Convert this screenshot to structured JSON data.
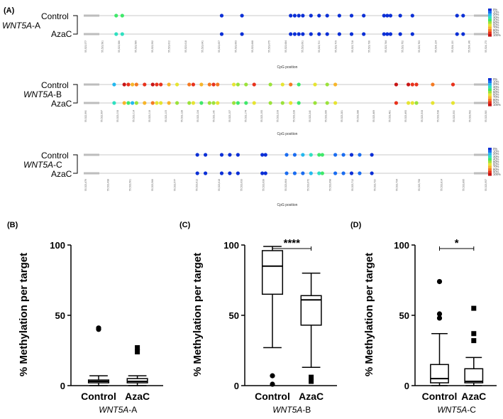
{
  "panels": {
    "A": "(A)",
    "B": "(B)",
    "C": "(C)",
    "D": "(D)"
  },
  "top_label_text": {
    "control": "Control",
    "azac": "AzaC",
    "xlabel": "CpG position"
  },
  "legend_levels": [
    "0%",
    "10%",
    "20%",
    "30%",
    "40%",
    "50%",
    "60%",
    "70%",
    "80%",
    "90%",
    "100%"
  ],
  "colors": {
    "scale": [
      "#0b2fd6",
      "#1a6cf0",
      "#23b8ee",
      "#2fe0c0",
      "#3fe86a",
      "#9be23a",
      "#e6e432",
      "#f7b52a",
      "#f47a22",
      "#e8321c",
      "#c81414"
    ],
    "line": "#c9c9c9",
    "box": "#000000"
  },
  "chart_data": [
    {
      "type": "dot-strip",
      "panel": "A",
      "gene": "WNT5A",
      "gene_suffix": "-A",
      "xlabel": "CpG position",
      "series_labels": [
        "Control",
        "AzaC"
      ],
      "color_scale": "methylation 0% (blue) to 100% (red)",
      "sites": [
        {
          "pos": 8.0,
          "control": 40,
          "azac": 30
        },
        {
          "pos": 9.5,
          "control": 40,
          "azac": 25
        },
        {
          "pos": 34.0,
          "control": 2,
          "azac": 3
        },
        {
          "pos": 39.0,
          "control": 3,
          "azac": 3
        },
        {
          "pos": 51.0,
          "control": 2,
          "azac": 2
        },
        {
          "pos": 52.0,
          "control": 2,
          "azac": 2
        },
        {
          "pos": 53.0,
          "control": 3,
          "azac": 3
        },
        {
          "pos": 54.0,
          "control": 2,
          "azac": 2
        },
        {
          "pos": 56.0,
          "control": 3,
          "azac": 2
        },
        {
          "pos": 58.0,
          "control": 2,
          "azac": 2
        },
        {
          "pos": 60.0,
          "control": 2,
          "azac": 3
        },
        {
          "pos": 63.0,
          "control": 3,
          "azac": 2
        },
        {
          "pos": 66.0,
          "control": 2,
          "azac": 2
        },
        {
          "pos": 69.0,
          "control": 3,
          "azac": 3
        },
        {
          "pos": 74.0,
          "control": 3,
          "azac": 3
        },
        {
          "pos": 74.8,
          "control": 2,
          "azac": 2
        },
        {
          "pos": 75.6,
          "control": 2,
          "azac": 2
        },
        {
          "pos": 78.0,
          "control": 3,
          "azac": 3
        },
        {
          "pos": 81.0,
          "control": 2,
          "azac": 2
        },
        {
          "pos": 92.0,
          "control": 2,
          "azac": 3
        },
        {
          "pos": 93.5,
          "control": 3,
          "azac": 2
        }
      ],
      "tick_labels": [
        "55,523,577",
        "55,523,581",
        "55,523,586",
        "55,523,589",
        "55,523,592",
        "55,523,602",
        "55,523,618",
        "55,523,641",
        "55,523,657",
        "55,523,663",
        "55,523,668",
        "55,523,675",
        "55,523,684",
        "55,523,691",
        "55,523,700",
        "55,523,709",
        "55,523,718",
        "55,523,736",
        "55,523,744",
        "55,523,752",
        "55,523,763",
        "55,524,124",
        "55,524,130",
        "55,524,146",
        "55,524,173"
      ]
    },
    {
      "type": "dot-strip",
      "panel": "A2",
      "gene": "WNT5A",
      "gene_suffix": "-B",
      "xlabel": "CpG position",
      "series_labels": [
        "Control",
        "AzaC"
      ],
      "sites": [
        {
          "pos": 7.5,
          "control": 15,
          "azac": 30
        },
        {
          "pos": 10.0,
          "control": 95,
          "azac": 70
        },
        {
          "pos": 11.0,
          "control": 85,
          "azac": 40
        },
        {
          "pos": 12.0,
          "control": 70,
          "azac": 20
        },
        {
          "pos": 13.0,
          "control": 80,
          "azac": 50
        },
        {
          "pos": 15.0,
          "control": 90,
          "azac": 65
        },
        {
          "pos": 17.0,
          "control": 95,
          "azac": 80
        },
        {
          "pos": 18.0,
          "control": 92,
          "azac": 60
        },
        {
          "pos": 19.0,
          "control": 88,
          "azac": 55
        },
        {
          "pos": 21.0,
          "control": 70,
          "azac": 72
        },
        {
          "pos": 23.0,
          "control": 60,
          "azac": 50
        },
        {
          "pos": 26.0,
          "control": 75,
          "azac": 45
        },
        {
          "pos": 27.0,
          "control": 85,
          "azac": 60
        },
        {
          "pos": 29.0,
          "control": 70,
          "azac": 40
        },
        {
          "pos": 31.0,
          "control": 80,
          "azac": 50
        },
        {
          "pos": 32.0,
          "control": 90,
          "azac": 45
        },
        {
          "pos": 33.0,
          "control": 75,
          "azac": 55
        },
        {
          "pos": 37.0,
          "control": 60,
          "azac": 45
        },
        {
          "pos": 38.0,
          "control": 50,
          "azac": 40
        },
        {
          "pos": 40.0,
          "control": 45,
          "azac": 35
        },
        {
          "pos": 42.0,
          "control": 90,
          "azac": 60
        },
        {
          "pos": 46.0,
          "control": 50,
          "azac": 45
        },
        {
          "pos": 49.0,
          "control": 60,
          "azac": 50
        },
        {
          "pos": 51.0,
          "control": 80,
          "azac": 55
        },
        {
          "pos": 53.0,
          "control": 40,
          "azac": 35
        },
        {
          "pos": 57.0,
          "control": 55,
          "azac": 50
        },
        {
          "pos": 60.0,
          "control": 50,
          "azac": 45
        },
        {
          "pos": 62.0,
          "control": 70,
          "azac": 55
        },
        {
          "pos": 77.0,
          "control": 95,
          "azac": 85
        },
        {
          "pos": 80.0,
          "control": 95,
          "azac": 60
        },
        {
          "pos": 81.0,
          "control": 90,
          "azac": 55
        },
        {
          "pos": 82.0,
          "control": 85,
          "azac": 50
        },
        {
          "pos": 86.0,
          "control": 75,
          "azac": 60
        },
        {
          "pos": 91.0,
          "control": 92,
          "azac": 55
        }
      ],
      "tick_labels": [
        "55,522,990",
        "55,522,997",
        "55,523,008",
        "55,523,014",
        "55,523,019",
        "55,523,105",
        "55,523,128",
        "55,523,134",
        "55,523,140",
        "55,523,157",
        "55,523,174",
        "55,523,193",
        "55,523,208",
        "55,523,228",
        "55,523,240",
        "55,523,266",
        "55,523,281",
        "55,523,288",
        "55,523,469",
        "55,523,481",
        "55,523,493",
        "55,523,508",
        "55,523,538",
        "55,523,550",
        "55,523,562",
        "55,523,580"
      ]
    },
    {
      "type": "dot-strip",
      "panel": "A3",
      "gene": "WNT5A",
      "gene_suffix": "-C",
      "xlabel": "CpG position",
      "series_labels": [
        "Control",
        "AzaC"
      ],
      "sites": [
        {
          "pos": 28.0,
          "control": 2,
          "azac": 2
        },
        {
          "pos": 30.0,
          "control": 3,
          "azac": 3
        },
        {
          "pos": 34.0,
          "control": 2,
          "azac": 2
        },
        {
          "pos": 36.0,
          "control": 2,
          "azac": 2
        },
        {
          "pos": 38.0,
          "control": 3,
          "azac": 3
        },
        {
          "pos": 44.0,
          "control": 2,
          "azac": 2
        },
        {
          "pos": 44.8,
          "control": 2,
          "azac": 2
        },
        {
          "pos": 50.0,
          "control": 8,
          "azac": 5
        },
        {
          "pos": 52.0,
          "control": 10,
          "azac": 8
        },
        {
          "pos": 54.0,
          "control": 15,
          "azac": 12
        },
        {
          "pos": 56.0,
          "control": 25,
          "azac": 20
        },
        {
          "pos": 58.0,
          "control": 35,
          "azac": 30
        },
        {
          "pos": 58.8,
          "control": 40,
          "azac": 35
        },
        {
          "pos": 62.0,
          "control": 8,
          "azac": 6
        },
        {
          "pos": 64.0,
          "control": 5,
          "azac": 5
        },
        {
          "pos": 66.0,
          "control": 3,
          "azac": 3
        },
        {
          "pos": 68.0,
          "control": 12,
          "azac": 8
        },
        {
          "pos": 71.0,
          "control": 2,
          "azac": 2
        }
      ],
      "tick_labels": [
        "55,523,479",
        "55,523,438",
        "55,523,561",
        "55,523,566",
        "55,523,577",
        "55,523,612",
        "55,523,618",
        "55,523,633",
        "55,523,639",
        "55,523,664",
        "55,523,672",
        "55,523,698",
        "55,523,712",
        "55,523,720",
        "55,523,734",
        "55,523,758",
        "55,523,814",
        "55,523,895",
        "55,523,957"
      ]
    },
    {
      "type": "box",
      "panel": "B",
      "title": "",
      "ylabel": "% Methylation per target",
      "ylim": [
        0,
        100
      ],
      "yticks": [
        "0",
        "50",
        "100"
      ],
      "categories": [
        "Control",
        "AzaC"
      ],
      "xlabel_gene": "WNT5A",
      "xlabel_suffix": "-A",
      "boxes": [
        {
          "min": 0,
          "q1": 2,
          "median": 3,
          "q3": 4,
          "max": 7,
          "outliers": [
            41,
            40
          ]
        },
        {
          "min": 0,
          "q1": 2,
          "median": 3,
          "q3": 5,
          "max": 7,
          "outliers": [
            24,
            27
          ]
        }
      ],
      "marker": [
        "circle",
        "square"
      ],
      "significance": ""
    },
    {
      "type": "box",
      "panel": "C",
      "ylabel": "% Methylation per target",
      "ylim": [
        0,
        100
      ],
      "yticks": [
        "0",
        "50",
        "100"
      ],
      "categories": [
        "Control",
        "AzaC"
      ],
      "xlabel_gene": "WNT5A",
      "xlabel_suffix": "-B",
      "boxes": [
        {
          "min": 27,
          "q1": 65,
          "median": 85,
          "q3": 96,
          "max": 99,
          "outliers": [
            7,
            1
          ]
        },
        {
          "min": 13,
          "q1": 43,
          "median": 61,
          "q3": 64,
          "max": 80,
          "outliers": [
            3,
            6
          ]
        }
      ],
      "marker": [
        "circle",
        "square"
      ],
      "significance": "****"
    },
    {
      "type": "box",
      "panel": "D",
      "ylabel": "% Methylation per target",
      "ylim": [
        0,
        100
      ],
      "yticks": [
        "0",
        "50",
        "100"
      ],
      "categories": [
        "Control",
        "AzaC"
      ],
      "xlabel_gene": "WNT5A",
      "xlabel_suffix": "-C",
      "boxes": [
        {
          "min": 0,
          "q1": 2,
          "median": 5,
          "q3": 15,
          "max": 37,
          "outliers": [
            48,
            51,
            74
          ]
        },
        {
          "min": 0,
          "q1": 2,
          "median": 3,
          "q3": 12,
          "max": 20,
          "outliers": [
            32,
            37,
            55
          ]
        }
      ],
      "marker": [
        "circle",
        "square"
      ],
      "significance": "*"
    }
  ]
}
